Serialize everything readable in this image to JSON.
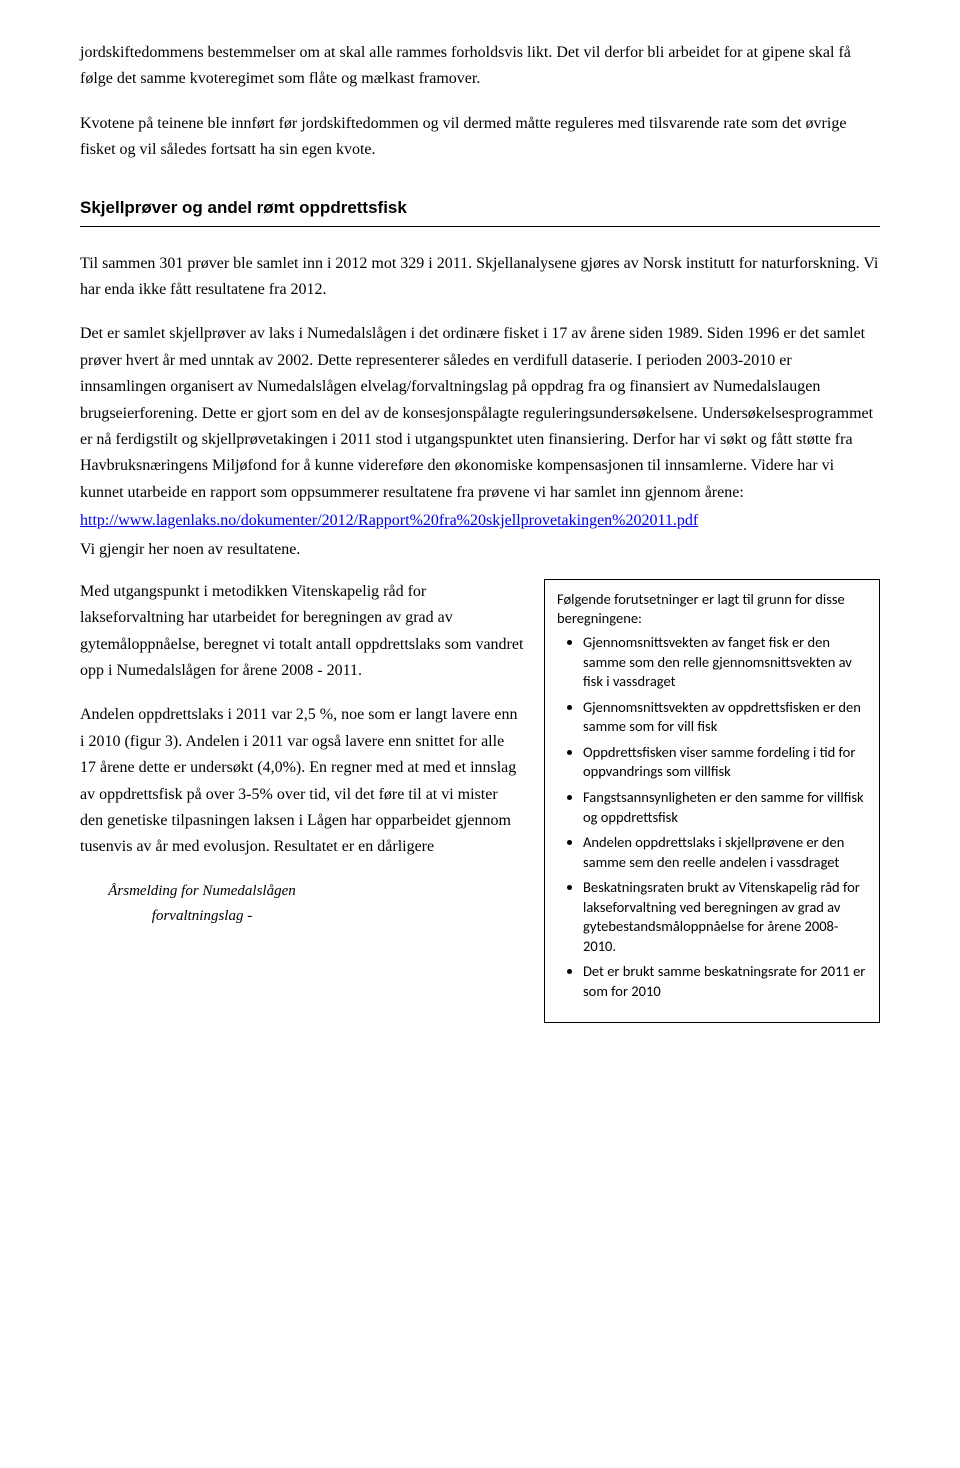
{
  "para1": "jordskiftedommens bestemmelser om at skal alle rammes forholdsvis likt. Det vil derfor bli arbeidet for at gipene skal få følge det samme kvoteregimet som flåte og mælkast framover.",
  "para2": "Kvotene på teinene ble innført før jordskiftedommen og vil dermed måtte reguleres med tilsvarende rate som det øvrige fisket og vil således fortsatt ha sin egen kvote.",
  "heading": "Skjellprøver og andel rømt oppdrettsfisk",
  "para3": "Til sammen 301 prøver ble samlet inn i 2012 mot 329 i 2011. Skjellanalysene gjøres av Norsk institutt for naturforskning. Vi har enda ikke fått resultatene fra 2012.",
  "para4": "Det er samlet skjellprøver av laks i Numedalslågen i det ordinære fisket i 17 av årene siden 1989. Siden 1996 er det samlet prøver hvert år med unntak av 2002. Dette representerer således en verdifull dataserie. I perioden 2003-2010 er innsamlingen organisert av Numedalslågen elvelag/forvaltningslag på oppdrag fra og finansiert av Numedalslaugen brugseierforening. Dette er gjort som en del av de konsesjonspålagte reguleringsundersøkelsene. Undersøkelsesprogrammet er nå ferdigstilt og skjellprøvetakingen i 2011 stod i utgangspunktet uten finansiering. Derfor har vi søkt og fått støtte fra Havbruksnæringens Miljøfond for å kunne videreføre den økonomiske kompensasjonen til innsamlerne. Videre har vi kunnet utarbeide en rapport som oppsummerer resultatene fra prøvene vi har samlet inn gjennom årene:",
  "link_text": "http://www.lagenlaks.no/dokumenter/2012/Rapport%20fra%20skjellprovetakingen%202011.pdf",
  "para5": "Vi gjengir her noen av resultatene.",
  "left_para1": "Med utgangspunkt i metodikken Vitenskapelig råd for lakseforvaltning har utarbeidet for beregningen av grad av gytemåloppnåelse, beregnet vi totalt antall oppdrettslaks som vandret opp i Numedalslågen for årene 2008 - 2011.",
  "left_para2": "Andelen oppdrettslaks i 2011 var 2,5 %, noe som er langt lavere enn i 2010 (figur 3). Andelen i 2011 var også lavere enn snittet for alle 17 årene dette er undersøkt (4,0%). En regner med at med et innslag av oppdrettsfisk på over 3-5% over tid, vil det føre til at vi mister den genetiske tilpasningen laksen i Lågen har opparbeidet gjennom tusenvis av år med evolusjon. Resultatet er en dårligere",
  "box_intro": "Følgende forutsetninger er lagt til grunn for disse beregningene:",
  "box_items": [
    "Gjennomsnittsvekten av fanget fisk er den samme som den relle gjennomsnittsvekten av fisk i vassdraget",
    "Gjennomsnittsvekten av oppdrettsfisken er den samme som for vill fisk",
    "Oppdrettsfisken viser samme fordeling i tid for oppvandrings som villfisk",
    "Fangstsannsynligheten er den samme for villfisk og oppdrettsfisk",
    "Andelen oppdrettslaks i skjellprøvene er den samme sem den reelle andelen i vassdraget",
    "Beskatningsraten brukt av Vitenskapelig råd for lakseforvaltning ved beregningen av grad av gytebestandsmåloppnåelse for årene 2008-2010.",
    "Det er brukt samme beskatningsrate for 2011 er som for 2010"
  ],
  "footer": "Årsmelding for Numedalslågen forvaltningslag   -"
}
